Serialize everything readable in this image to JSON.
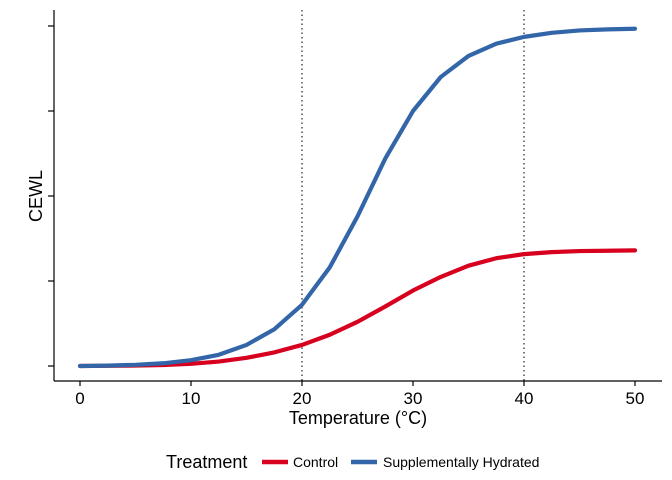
{
  "chart_data": {
    "type": "line",
    "title": "",
    "xlabel": "Temperature (°C)",
    "ylabel": "CEWL",
    "xlim": [
      0,
      50
    ],
    "ylim": [
      0,
      1
    ],
    "x_ticks": [
      0,
      10,
      20,
      30,
      40,
      50
    ],
    "x_tick_labels": [
      "0",
      "10",
      "20",
      "30",
      "40",
      "50"
    ],
    "y_ticks": [
      0,
      0.25,
      0.5,
      0.75,
      1.0
    ],
    "y_tick_labels_shown": false,
    "reference_lines": [
      {
        "axis": "x",
        "value": 20,
        "style": "dotted",
        "color": "#333333"
      },
      {
        "axis": "x",
        "value": 40,
        "style": "dotted",
        "color": "#333333"
      }
    ],
    "grid": false,
    "legend": {
      "title": "Treatment",
      "position": "bottom"
    },
    "x": [
      0,
      2.5,
      5,
      7.5,
      10,
      12.5,
      15,
      17.5,
      20,
      22.5,
      25,
      27.5,
      30,
      32.5,
      35,
      37.5,
      40,
      42.5,
      45,
      47.5,
      50
    ],
    "series": [
      {
        "name": "Control",
        "color": "#d7001e",
        "values": [
          0.0,
          0.0005,
          0.0013,
          0.003,
          0.0065,
          0.013,
          0.024,
          0.04,
          0.062,
          0.092,
          0.13,
          0.175,
          0.222,
          0.262,
          0.295,
          0.317,
          0.329,
          0.335,
          0.338,
          0.339,
          0.34
        ]
      },
      {
        "name": "Supplementally Hydrated",
        "color": "#3266a8",
        "values": [
          0.0,
          0.0012,
          0.0035,
          0.008,
          0.017,
          0.033,
          0.062,
          0.108,
          0.18,
          0.29,
          0.44,
          0.61,
          0.75,
          0.85,
          0.912,
          0.948,
          0.968,
          0.98,
          0.987,
          0.99,
          0.992
        ]
      }
    ]
  }
}
